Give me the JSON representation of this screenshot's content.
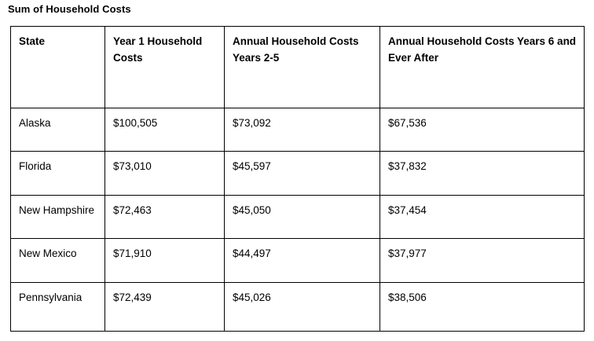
{
  "title": "Sum of Household Costs",
  "table": {
    "columns": [
      "State",
      "Year 1 Household Costs",
      "Annual Household Costs Years 2-5",
      "Annual Household Costs Years 6 and Ever After"
    ],
    "rows": [
      [
        "Alaska",
        "$100,505",
        "$73,092",
        "$67,536"
      ],
      [
        "Florida",
        "$73,010",
        "$45,597",
        "$37,832"
      ],
      [
        "New Hampshire",
        "$72,463",
        "$45,050",
        "$37,454"
      ],
      [
        "New Mexico",
        "$71,910",
        "$44,497",
        "$37,977"
      ],
      [
        "Pennsylvania",
        "$72,439",
        "$45,026",
        "$38,506"
      ]
    ]
  },
  "colors": {
    "text": "#000000",
    "border": "#000000",
    "background": "#ffffff"
  }
}
